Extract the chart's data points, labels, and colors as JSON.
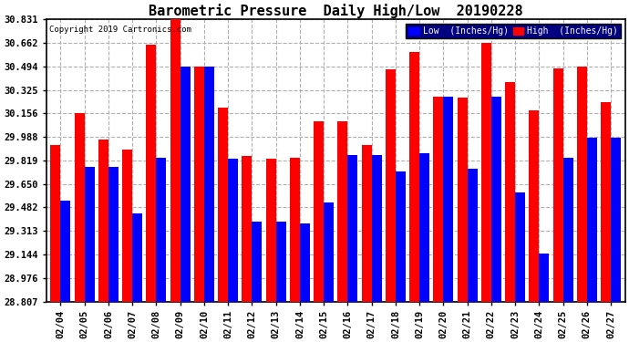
{
  "title": "Barometric Pressure  Daily High/Low  20190228",
  "copyright": "Copyright 2019 Cartronics.com",
  "dates": [
    "02/04",
    "02/05",
    "02/06",
    "02/07",
    "02/08",
    "02/09",
    "02/10",
    "02/11",
    "02/12",
    "02/13",
    "02/14",
    "02/15",
    "02/16",
    "02/17",
    "02/18",
    "02/19",
    "02/20",
    "02/21",
    "02/22",
    "02/23",
    "02/24",
    "02/25",
    "02/26",
    "02/27"
  ],
  "high": [
    29.93,
    30.16,
    29.97,
    29.9,
    30.65,
    30.83,
    30.49,
    30.2,
    29.85,
    29.83,
    29.84,
    30.1,
    30.1,
    29.93,
    30.47,
    30.6,
    30.28,
    30.27,
    30.66,
    30.38,
    30.18,
    30.48,
    30.49,
    30.24
  ],
  "low": [
    29.53,
    29.77,
    29.77,
    29.44,
    29.84,
    30.49,
    30.49,
    29.83,
    29.38,
    29.38,
    29.37,
    29.52,
    29.86,
    29.86,
    29.74,
    29.87,
    30.28,
    29.76,
    30.28,
    29.59,
    29.15,
    29.84,
    29.98,
    29.98
  ],
  "ylim_min": 28.807,
  "ylim_max": 30.831,
  "yticks": [
    28.807,
    28.976,
    29.144,
    29.313,
    29.482,
    29.65,
    29.819,
    29.988,
    30.156,
    30.325,
    30.494,
    30.662,
    30.831
  ],
  "bar_width": 0.42,
  "high_color": "#ff0000",
  "low_color": "#0000ff",
  "bg_color": "#ffffff",
  "grid_color": "#b0b0b0",
  "title_fontsize": 11,
  "legend_low_label": "Low  (Inches/Hg)",
  "legend_high_label": "High  (Inches/Hg)"
}
